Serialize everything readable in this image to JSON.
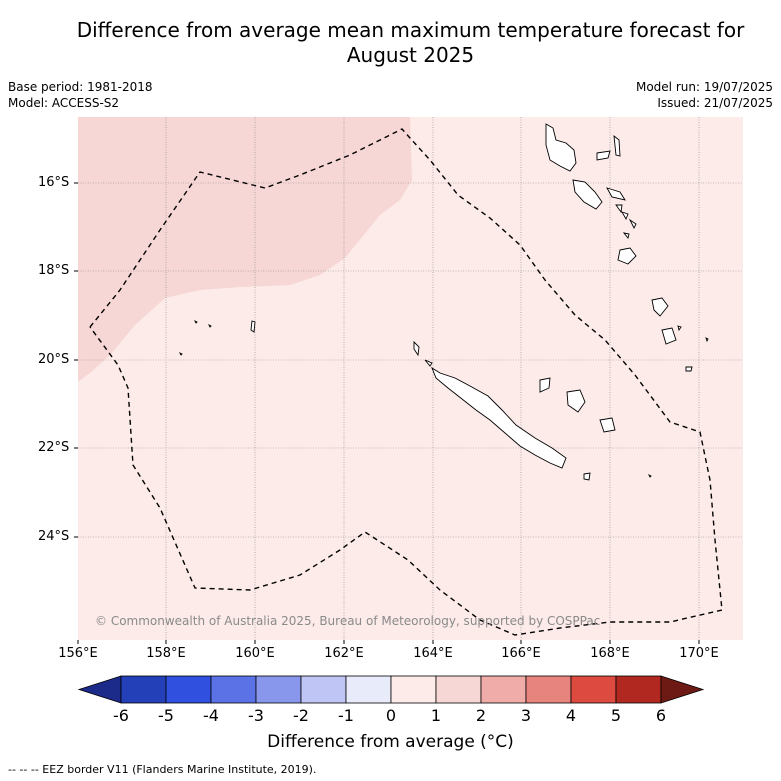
{
  "header": {
    "title_line1": "Difference from average mean maximum temperature forecast for",
    "title_line2": "August 2025",
    "base_period": "Base period: 1981-2018",
    "model": "Model: ACCESS-S2",
    "model_run": "Model run: 19/07/2025",
    "issued": "Issued: 21/07/2025"
  },
  "map": {
    "lat_labels": [
      "16°S",
      "18°S",
      "20°S",
      "22°S",
      "24°S"
    ],
    "lon_labels": [
      "156°E",
      "158°E",
      "160°E",
      "162°E",
      "164°E",
      "166°E",
      "168°E",
      "170°E"
    ],
    "copyright": "© Commonwealth of Australia 2025, Bureau of Meteorology, supported by COSPPac",
    "regions": [
      {
        "name": "anomaly-0-to-1",
        "color": "#fcebe9"
      },
      {
        "name": "anomaly-1-to-2",
        "color": "#f6d7d5"
      }
    ]
  },
  "colorbar": {
    "ticks": [
      "-6",
      "-5",
      "-4",
      "-3",
      "-2",
      "-1",
      "0",
      "1",
      "2",
      "3",
      "4",
      "5",
      "6"
    ],
    "colors": [
      "#1c2a8a",
      "#2340b8",
      "#3050e0",
      "#5a72e6",
      "#8896ec",
      "#bfc5f4",
      "#e8ebfa",
      "#fcebe9",
      "#f6d7d5",
      "#f0aca8",
      "#e8847e",
      "#dd4a40",
      "#b0281f",
      "#6e1a14"
    ],
    "label": "Difference from average (°C)"
  },
  "legend": {
    "eez": "--  --  -- EEZ border V11 (Flanders Marine Institute, 2019)."
  }
}
